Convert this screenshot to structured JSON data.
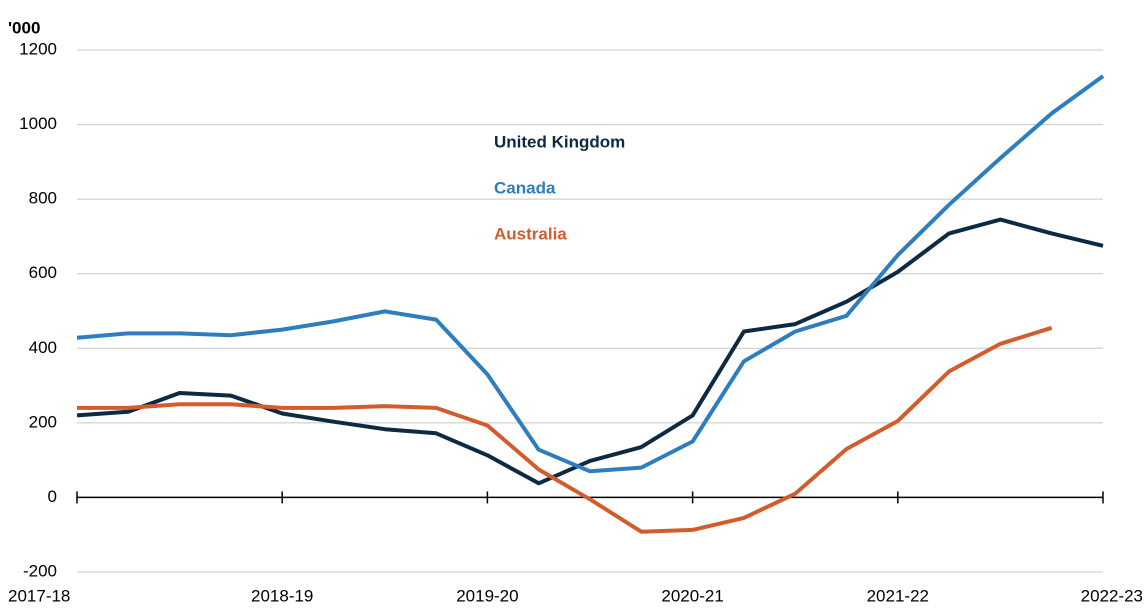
{
  "chart_data": {
    "type": "line",
    "y_label": "'000",
    "categories": [
      "2017-18",
      null,
      null,
      null,
      "2018-19",
      null,
      null,
      null,
      "2019-20",
      null,
      null,
      null,
      "2020-21",
      null,
      null,
      null,
      "2021-22",
      null,
      null,
      null,
      "2022-23"
    ],
    "series": [
      {
        "name": "United Kingdom",
        "color": "#0c2a44",
        "values": [
          220,
          230,
          280,
          273,
          225,
          203,
          183,
          172,
          113,
          38,
          98,
          135,
          220,
          445,
          465,
          525,
          605,
          708,
          745,
          708,
          675
        ]
      },
      {
        "name": "Canada",
        "color": "#2e7ebf",
        "values": [
          428,
          440,
          440,
          435,
          450,
          472,
          499,
          477,
          330,
          128,
          70,
          80,
          150,
          365,
          445,
          487,
          650,
          785,
          910,
          1030,
          1130
        ]
      },
      {
        "name": "Australia",
        "color": "#d35c2c",
        "values": [
          240,
          240,
          250,
          250,
          240,
          240,
          245,
          240,
          193,
          75,
          -5,
          -92,
          -87,
          -55,
          10,
          130,
          205,
          338,
          412,
          455,
          null
        ]
      }
    ],
    "ylim": [
      -200,
      1200
    ],
    "yticks": [
      -200,
      0,
      200,
      400,
      600,
      800,
      1000,
      1200
    ],
    "grid": true
  }
}
